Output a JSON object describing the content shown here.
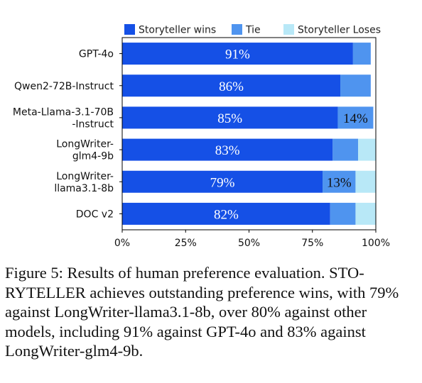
{
  "chart_data": {
    "type": "bar",
    "orientation": "horizontal",
    "stacked": true,
    "categories": [
      [
        "GPT-4o"
      ],
      [
        "Qwen2-72B-Instruct"
      ],
      [
        "Meta-Llama-3.1-70B",
        "-Instruct"
      ],
      [
        "LongWriter-",
        "glm4-9b"
      ],
      [
        "LongWriter-",
        "llama3.1-8b"
      ],
      [
        "DOC v2"
      ]
    ],
    "series": [
      {
        "name": "Storyteller wins",
        "color": "#1550e6",
        "values": [
          91,
          86,
          85,
          83,
          79,
          82
        ]
      },
      {
        "name": "Tie",
        "color": "#4f94ef",
        "values": [
          7,
          12,
          14,
          10,
          13,
          10
        ]
      },
      {
        "name": "Storyteller Loses",
        "color": "#b8e8f7",
        "values": [
          0,
          0,
          0,
          7,
          8,
          8
        ]
      }
    ],
    "data_labels": [
      {
        "category": 0,
        "series": 0,
        "text": "91%"
      },
      {
        "category": 1,
        "series": 0,
        "text": "86%"
      },
      {
        "category": 2,
        "series": 0,
        "text": "85%"
      },
      {
        "category": 2,
        "series": 1,
        "text": "14%"
      },
      {
        "category": 3,
        "series": 0,
        "text": "83%"
      },
      {
        "category": 4,
        "series": 0,
        "text": "79%"
      },
      {
        "category": 4,
        "series": 1,
        "text": "13%"
      },
      {
        "category": 5,
        "series": 0,
        "text": "82%"
      }
    ],
    "xticks": [
      "0%",
      "25%",
      "50%",
      "75%",
      "100%"
    ],
    "xlim": [
      0,
      100
    ],
    "legend_position": "top",
    "grid": false
  },
  "caption": {
    "figure_label": "Figure 5:",
    "sentence_1": "Results of human preference evaluation.",
    "name_head": "S",
    "name_tail_1": "TO",
    "name_tail_2": "RYTELLER",
    "rest": "achieves outstanding preference wins, with 79% against LongWriter-llama3.1-8b, over 80% against other models, including 91% against GPT-4o and 83% against LongWriter-glm4-9b."
  }
}
